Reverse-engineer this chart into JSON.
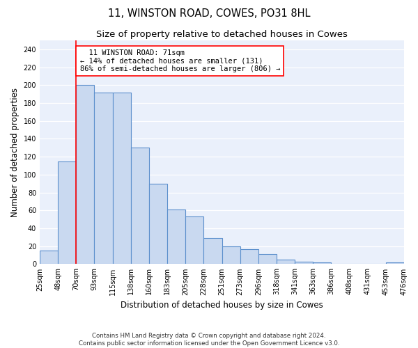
{
  "title": "11, WINSTON ROAD, COWES, PO31 8HL",
  "subtitle": "Size of property relative to detached houses in Cowes",
  "xlabel": "Distribution of detached houses by size in Cowes",
  "ylabel": "Number of detached properties",
  "categories": [
    "25sqm",
    "48sqm",
    "70sqm",
    "93sqm",
    "115sqm",
    "138sqm",
    "160sqm",
    "183sqm",
    "205sqm",
    "228sqm",
    "251sqm",
    "273sqm",
    "296sqm",
    "318sqm",
    "341sqm",
    "363sqm",
    "386sqm",
    "408sqm",
    "431sqm",
    "453sqm",
    "476sqm"
  ],
  "bar_heights": [
    15,
    115,
    200,
    192,
    192,
    130,
    90,
    61,
    53,
    29,
    20,
    17,
    11,
    5,
    3,
    2,
    0,
    0,
    0,
    2
  ],
  "bar_color": "#c9d9f0",
  "bar_edge_color": "#5b8fcc",
  "bar_edge_width": 0.8,
  "annotation_text": "  11 WINSTON ROAD: 71sqm\n← 14% of detached houses are smaller (131)\n86% of semi-detached houses are larger (806) →",
  "ylim": [
    0,
    250
  ],
  "yticks": [
    0,
    20,
    40,
    60,
    80,
    100,
    120,
    140,
    160,
    180,
    200,
    220,
    240
  ],
  "background_color": "#eaf0fb",
  "grid_color": "white",
  "footer_text": "Contains HM Land Registry data © Crown copyright and database right 2024.\nContains public sector information licensed under the Open Government Licence v3.0.",
  "title_fontsize": 10.5,
  "subtitle_fontsize": 9.5,
  "xlabel_fontsize": 8.5,
  "ylabel_fontsize": 8.5,
  "tick_fontsize": 7,
  "annotation_fontsize": 7.5,
  "footer_fontsize": 6.2
}
